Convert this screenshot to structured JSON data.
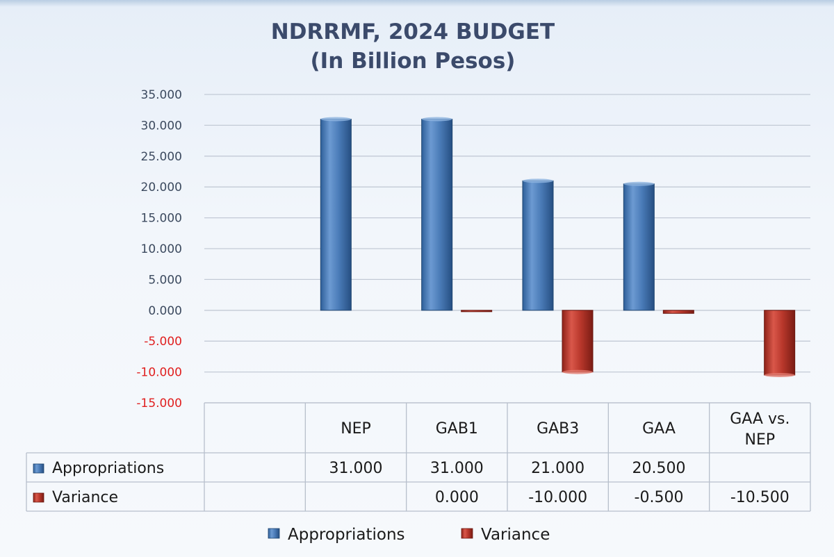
{
  "chart_data": {
    "type": "bar",
    "title": "NDRRMF,  2024 BUDGET",
    "subtitle": "(In Billion Pesos)",
    "categories": [
      "NEP",
      "GAB1",
      "GAB3",
      "GAA",
      "GAA vs. NEP"
    ],
    "category_lines": [
      [
        "NEP"
      ],
      [
        "GAB1"
      ],
      [
        "GAB3"
      ],
      [
        "GAA"
      ],
      [
        "GAA vs.",
        "NEP"
      ]
    ],
    "series": [
      {
        "name": "Appropriations",
        "color": "#4a7bb7",
        "values": [
          31.0,
          31.0,
          21.0,
          20.5,
          null
        ],
        "labels": [
          "31.000",
          "31.000",
          "21.000",
          "20.500",
          ""
        ]
      },
      {
        "name": "Variance",
        "color": "#c0392b",
        "values": [
          null,
          0.0,
          -10.0,
          -0.5,
          -10.5
        ],
        "labels": [
          "",
          "0.000",
          "-10.000",
          "-0.500",
          "-10.500"
        ]
      }
    ],
    "y_ticks": [
      "35.000",
      "30.000",
      "25.000",
      "20.000",
      "15.000",
      "10.000",
      "5.000",
      "0.000",
      "-5.000",
      "-10.000",
      "-15.000"
    ],
    "ylim": [
      -15,
      35
    ],
    "y_step": 5,
    "negative_tick_color": "#e02020",
    "positive_tick_color": "#3c4a5f",
    "grid": true,
    "legend_position": "bottom",
    "data_table": true
  }
}
